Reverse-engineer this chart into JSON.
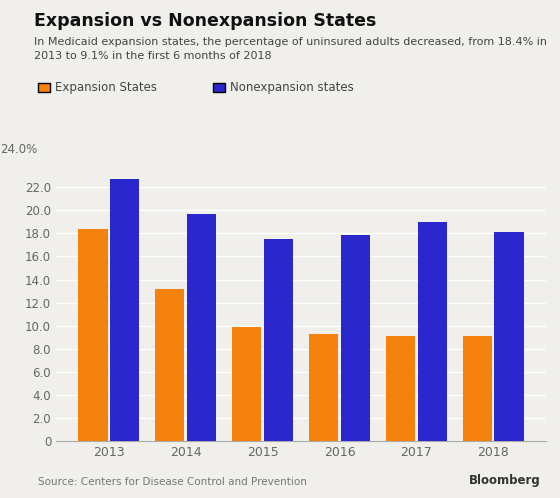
{
  "title": "Expansion vs Nonexpansion States",
  "subtitle": "In Medicaid expansion states, the percentage of uninsured adults decreased, from 18.4% in\n2013 to 9.1% in the first 6 months of 2018",
  "years": [
    2013,
    2014,
    2015,
    2016,
    2017,
    2018
  ],
  "expansion_values": [
    18.4,
    13.2,
    9.9,
    9.3,
    9.1,
    9.1
  ],
  "nonexpansion_values": [
    22.7,
    19.7,
    17.5,
    17.9,
    19.0,
    18.1
  ],
  "expansion_color": "#F5820D",
  "nonexpansion_color": "#2A27CC",
  "background_color": "#F0EFEB",
  "ylim": [
    0,
    24
  ],
  "yticks": [
    0.0,
    2.0,
    4.0,
    6.0,
    8.0,
    10.0,
    12.0,
    14.0,
    16.0,
    18.0,
    20.0,
    22.0
  ],
  "ytick_labels": [
    "0",
    "2.0",
    "4.0",
    "6.0",
    "8.0",
    "10.0",
    "12.0",
    "14.0",
    "16.0",
    "18.0",
    "20.0",
    "22.0"
  ],
  "legend_expansion": "Expansion States",
  "legend_nonexpansion": "Nonexpansion states",
  "source_text": "Source: Centers for Disease Control and Prevention",
  "bloomberg_text": "Bloomberg"
}
